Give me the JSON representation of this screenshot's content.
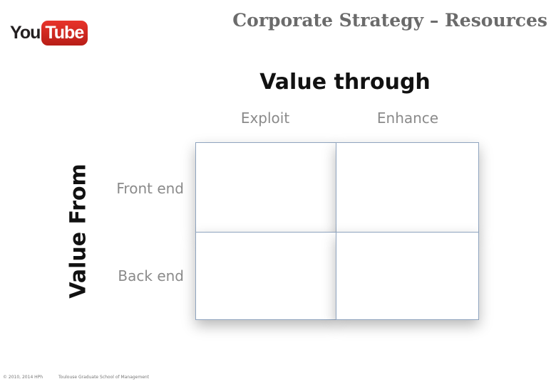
{
  "logo": {
    "you": "You",
    "tube": "Tube"
  },
  "title": "Corporate Strategy – Resources",
  "matrix": {
    "heading": "Value through",
    "columns": [
      "Exploit",
      "Enhance"
    ],
    "row_axis": "Value From",
    "rows": [
      "Front end",
      "Back end"
    ]
  },
  "footer": {
    "copyright": "© 2010, 2014 HPh",
    "school": "Toulouse Graduate School of Management"
  }
}
